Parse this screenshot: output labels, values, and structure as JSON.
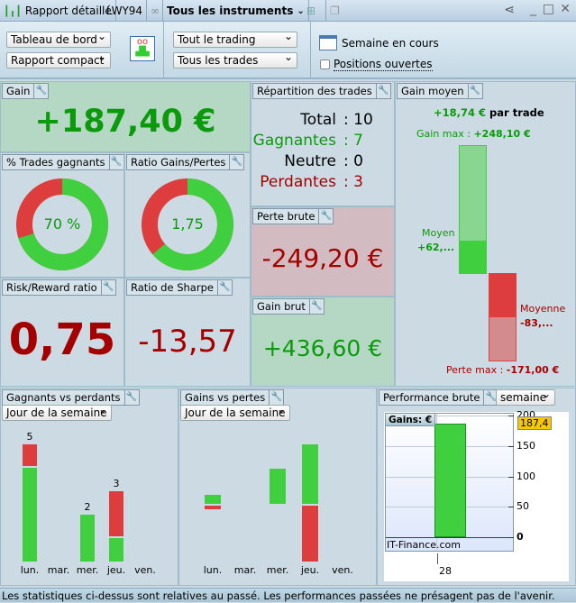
{
  "titlebar": {
    "report": "Rapport détaillé",
    "account": "LWY94",
    "instruments": "Tous les instruments"
  },
  "toolbar": {
    "view": "Tableau de bord",
    "mode": "Rapport compact",
    "trading": "Tout le trading",
    "trades": "Tous les trades",
    "period": "Semaine en cours",
    "open_positions": "Positions ouvertes",
    "open_positions_checked": false
  },
  "gain": {
    "title": "Gain",
    "value": "+187,40 €"
  },
  "win_pct": {
    "title": "% Trades gagnants",
    "value": "70  %",
    "fraction": 0.7
  },
  "ratio_gp": {
    "title": "Ratio Gains/Pertes",
    "value": "1,75",
    "fraction": 0.636
  },
  "risk_reward": {
    "title": "Risk/Reward ratio",
    "value": "0,75"
  },
  "sharpe": {
    "title": "Ratio de Sharpe",
    "value": "-13,57"
  },
  "repartition": {
    "title": "Répartition des trades",
    "rows": [
      {
        "label": "Total",
        "value": ": 10",
        "color": "#000000"
      },
      {
        "label": "Gagnantes",
        "value": ": 7",
        "color": "#0b9a0b"
      },
      {
        "label": "Neutre",
        "value": ": 0",
        "color": "#000000"
      },
      {
        "label": "Perdantes",
        "value": ": 3",
        "color": "#a50000"
      }
    ]
  },
  "perte_brute": {
    "title": "Perte brute",
    "value": "-249,20 €"
  },
  "gain_brut": {
    "title": "Gain brut",
    "value": "+436,60 €"
  },
  "gain_moyen": {
    "title": "Gain moyen",
    "per_trade": "+18,74 €",
    "per_trade_suffix": "par trade",
    "gain_max_label": "Gain max  :",
    "gain_max": "+248,10 €",
    "moyen_label": "Moyen",
    "moyen": "+62,...",
    "moyenne_label": "Moyenne",
    "moyenne": "-83,...",
    "perte_max_label": "Perte max  :",
    "perte_max": "-171,00 €"
  },
  "winners_losers": {
    "title": "Gagnants vs perdants",
    "grouping": "Jour de la semaine",
    "days": [
      "lun.",
      "mar.",
      "mer.",
      "jeu.",
      "ven."
    ],
    "wins": [
      4,
      0,
      2,
      1,
      0
    ],
    "losses": [
      1,
      0,
      0,
      2,
      0
    ],
    "totals": [
      "5",
      "",
      "2",
      "3",
      ""
    ]
  },
  "gains_losses": {
    "title": "Gains vs pertes",
    "grouping": "Jour de la semaine",
    "days": [
      "lun.",
      "mar.",
      "mer.",
      "jeu.",
      "ven."
    ],
    "gains": [
      38,
      0,
      148,
      250,
      0
    ],
    "losses": [
      15,
      0,
      0,
      234,
      0
    ]
  },
  "performance": {
    "title": "Performance brute",
    "period": "semaine",
    "legend": "Gains: €",
    "watermark": "IT-Finance.com",
    "y_ticks": [
      "200",
      "150",
      "100",
      "50",
      "0"
    ],
    "x_label": "28",
    "value": 187.4,
    "value_label": "187,4"
  },
  "footer": {
    "text": "Les statistiques ci-dessus sont relatives au passé. Les performances passées ne présagent pas de l'avenir."
  },
  "colors": {
    "green": "#3fcf3f",
    "red": "#dd3d3d"
  }
}
